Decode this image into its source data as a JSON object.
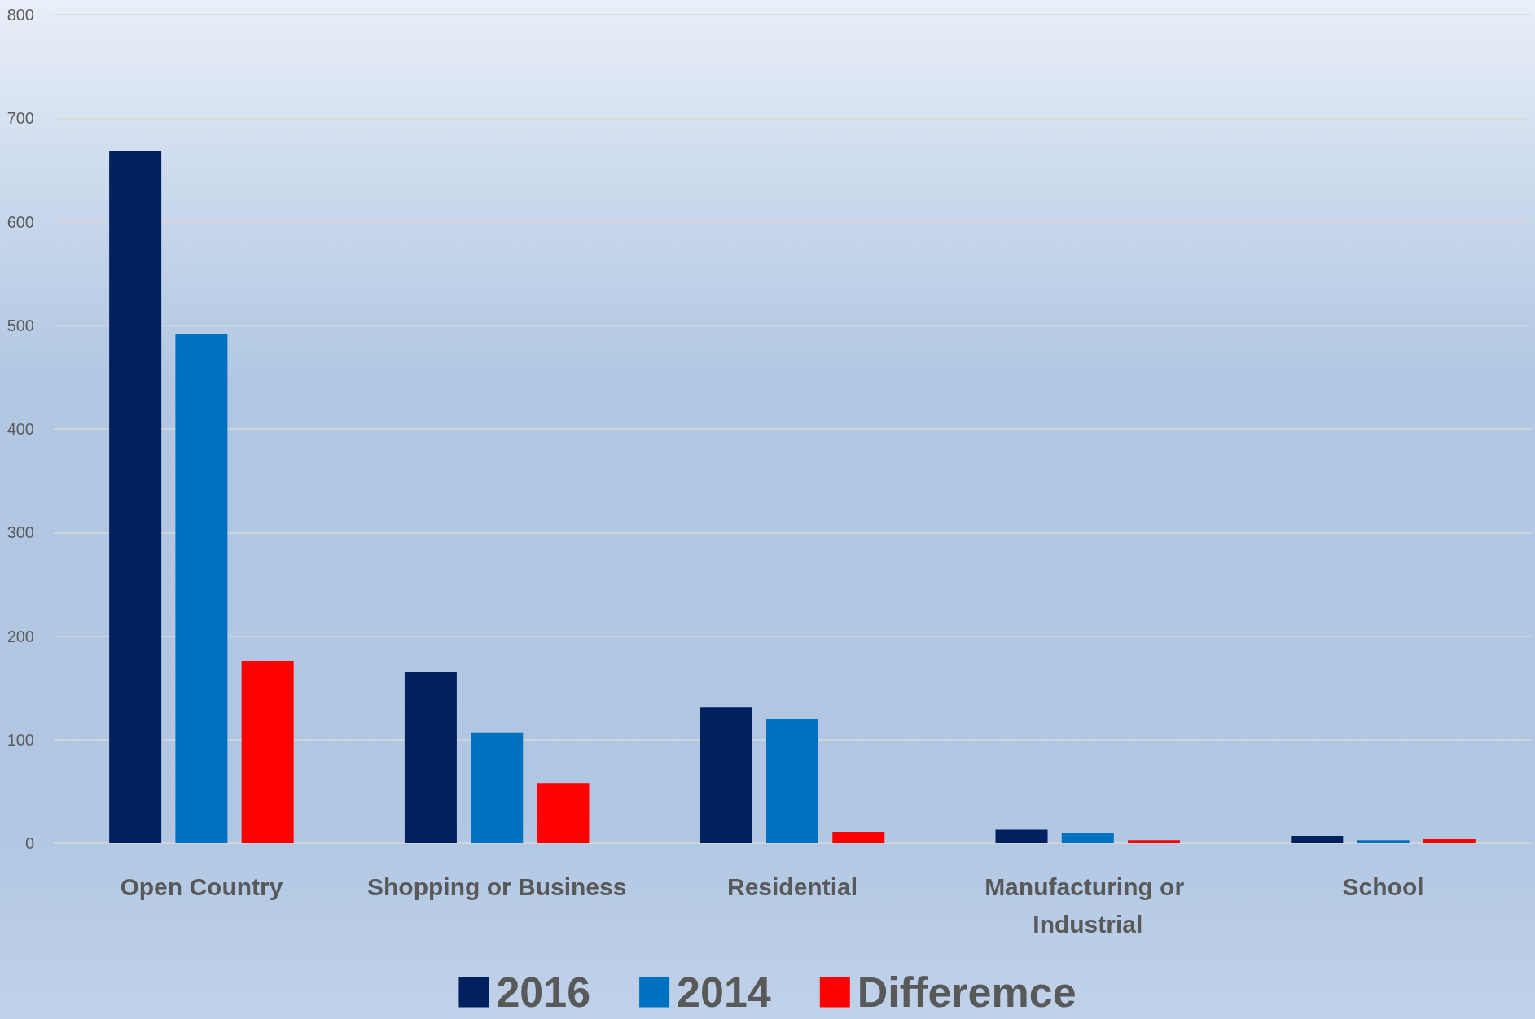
{
  "chart_data": {
    "type": "bar",
    "categories": [
      "Open Country",
      "Shopping or Business",
      "Residential",
      "Manufacturing or Industrial",
      "School"
    ],
    "series": [
      {
        "name": "2016",
        "color": "#002060",
        "values": [
          668,
          165,
          131,
          13,
          7
        ]
      },
      {
        "name": "2014",
        "color": "#0070c0",
        "values": [
          492,
          107,
          120,
          10,
          3
        ]
      },
      {
        "name": "Differemce",
        "color": "#ff0000",
        "values": [
          176,
          58,
          11,
          3,
          4
        ]
      }
    ],
    "ylim": [
      0,
      800
    ],
    "yticks": [
      0,
      100,
      200,
      300,
      400,
      500,
      600,
      700,
      800
    ],
    "grid": "y",
    "legend": "bottom"
  }
}
